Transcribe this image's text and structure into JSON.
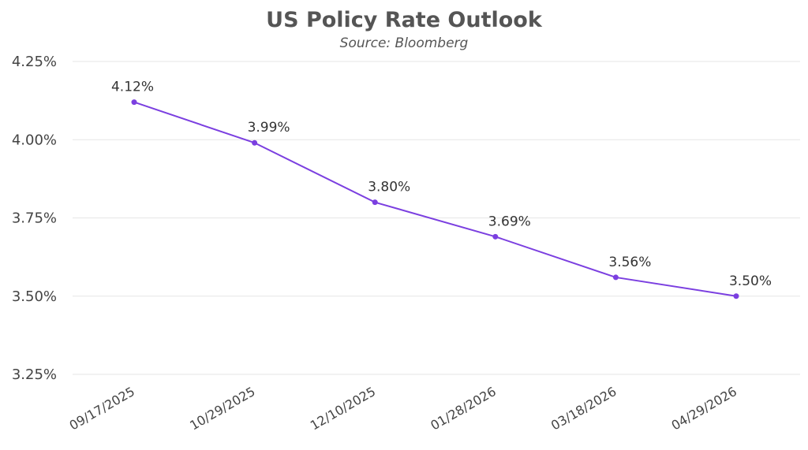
{
  "chart_data": {
    "type": "line",
    "title": "US Policy Rate Outlook",
    "subtitle": "Source: Bloomberg",
    "xlabel": "",
    "ylabel": "",
    "categories": [
      "09/17/2025",
      "10/29/2025",
      "12/10/2025",
      "01/28/2026",
      "03/18/2026",
      "04/29/2026"
    ],
    "series": [
      {
        "values": [
          4.12,
          3.99,
          3.8,
          3.69,
          3.56,
          3.5
        ],
        "labels": [
          "4.12%",
          "3.99%",
          "3.80%",
          "3.69%",
          "3.56%",
          "3.50%"
        ],
        "color": "#7b3fe0"
      }
    ],
    "ylim": [
      3.25,
      4.25
    ],
    "yticks": [
      3.25,
      3.5,
      3.75,
      4.0,
      4.25
    ],
    "ytick_labels": [
      "3.25%",
      "3.50%",
      "3.75%",
      "4.00%",
      "4.25%"
    ],
    "grid": true,
    "legend": "none"
  }
}
